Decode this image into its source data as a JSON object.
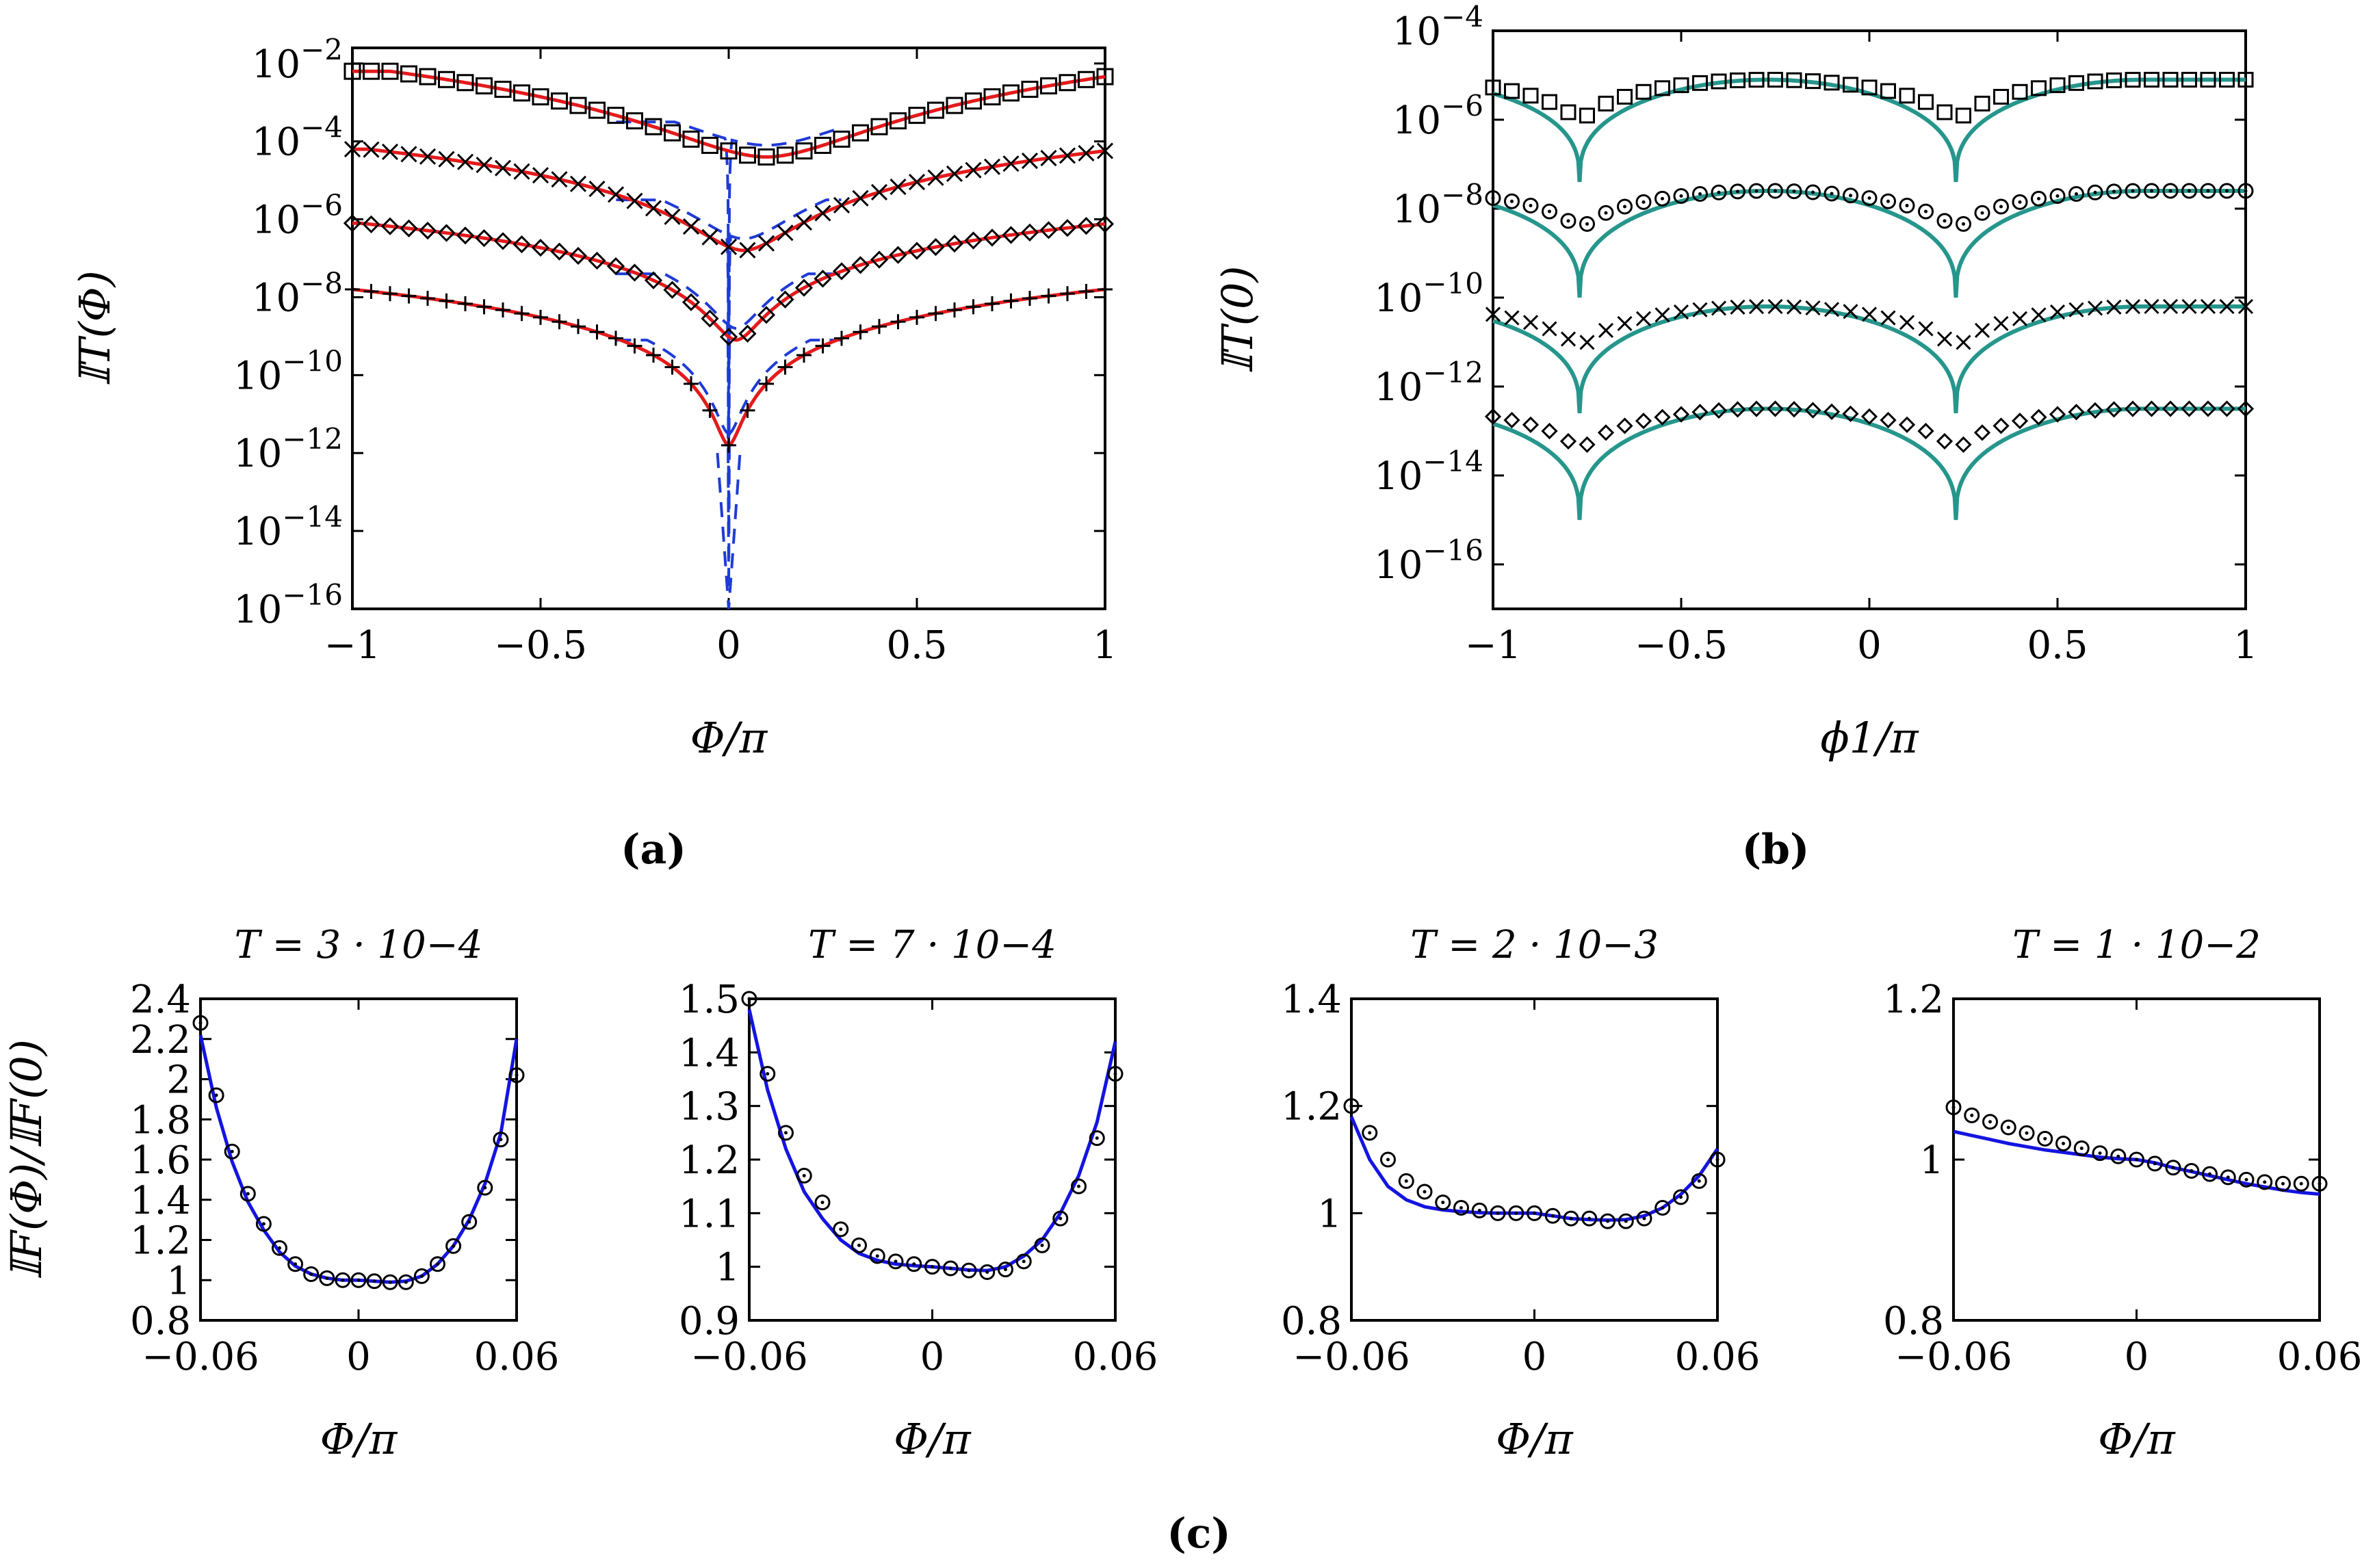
{
  "figure": {
    "panel_labels": [
      "(a)",
      "(b)",
      "(c)"
    ]
  },
  "chart_data": [
    {
      "id": "a",
      "type": "line",
      "xlabel": "Φ/π",
      "ylabel": "𝕀T(Φ)",
      "xlim": [
        -1,
        1
      ],
      "ylim_log10": [
        -16,
        -1.6
      ],
      "yscale": "log",
      "xticks": [
        -1,
        -0.5,
        0,
        0.5,
        1
      ],
      "xtick_labels": [
        "−1",
        "−0.5",
        "0",
        "0.5",
        "1"
      ],
      "yticks_exp": [
        -2,
        -4,
        -6,
        -8,
        -10,
        -12,
        -14,
        -16
      ],
      "ytick_labels": [
        "10−2",
        "10−4",
        "10−6",
        "10−8",
        "10−10",
        "10−12",
        "10−14",
        "10−16"
      ],
      "series": [
        {
          "name": "squares",
          "marker": "square",
          "top_log10": -2.2,
          "valley_log10": -4.4,
          "width": 0.25,
          "skew": 0.1,
          "n": 41
        },
        {
          "name": "crosses",
          "marker": "x",
          "top_log10": -4.2,
          "valley_log10": -6.8,
          "width": 0.12,
          "skew": 0.04,
          "n": 41
        },
        {
          "name": "diamonds",
          "marker": "diamond-x",
          "top_log10": -6.1,
          "valley_log10": -9.1,
          "width": 0.06,
          "skew": 0.02,
          "n": 41
        },
        {
          "name": "plus",
          "marker": "plus",
          "top_log10": -7.8,
          "valley_log10": -11.8,
          "width": 0.03,
          "skew": 0.0,
          "n": 41
        }
      ],
      "fit_color": "#e41a1c",
      "dashed_color": "#1f3bd6"
    },
    {
      "id": "b",
      "type": "line",
      "xlabel": "ϕ1/π",
      "ylabel": "𝕀T(0)",
      "xlim": [
        -1,
        1
      ],
      "ylim_log10": [
        -17,
        -4
      ],
      "yscale": "log",
      "xticks": [
        -1,
        -0.5,
        0,
        0.5,
        1
      ],
      "xtick_labels": [
        "−1",
        "−0.5",
        "0",
        "0.5",
        "1"
      ],
      "yticks_exp": [
        -4,
        -6,
        -8,
        -10,
        -12,
        -14,
        -16
      ],
      "ytick_labels": [
        "10−4",
        "10−6",
        "10−8",
        "10−10",
        "10−12",
        "10−14",
        "10−16"
      ],
      "dip_positions": [
        -0.77,
        0.23
      ],
      "series": [
        {
          "name": "squares",
          "marker": "square",
          "top_log10": -5.1,
          "dip_log10": -7.4,
          "marker_dip_log10": -6.4,
          "n": 41
        },
        {
          "name": "circles",
          "marker": "circle",
          "top_log10": -7.6,
          "dip_log10": -10.0,
          "marker_dip_log10": -8.8,
          "n": 41
        },
        {
          "name": "crosses",
          "marker": "x",
          "top_log10": -10.2,
          "dip_log10": -12.6,
          "marker_dip_log10": -11.5,
          "n": 41
        },
        {
          "name": "diamonds",
          "marker": "diamond",
          "top_log10": -12.5,
          "dip_log10": -15.0,
          "marker_dip_log10": -13.8,
          "n": 41
        }
      ],
      "fit_color": "#26968c"
    },
    {
      "id": "c1",
      "type": "line",
      "title": "T = 3 · 10−4",
      "xlabel": "Φ/π",
      "ylabel": "𝕀F(Φ)/𝕀F(0)",
      "xlim": [
        -0.06,
        0.06
      ],
      "ylim": [
        0.8,
        2.4
      ],
      "xticks": [
        -0.06,
        0,
        0.06
      ],
      "xtick_labels": [
        "−0.06",
        "0",
        "0.06"
      ],
      "yticks": [
        0.8,
        1,
        1.2,
        1.4,
        1.6,
        1.8,
        2,
        2.2,
        2.4
      ],
      "ytick_labels": [
        "0.8",
        "1",
        "1.2",
        "1.4",
        "1.6",
        "1.8",
        "2",
        "2.2",
        "2.4"
      ],
      "x": [
        -0.06,
        -0.054,
        -0.048,
        -0.042,
        -0.036,
        -0.03,
        -0.024,
        -0.018,
        -0.012,
        -0.006,
        0,
        0.006,
        0.012,
        0.018,
        0.024,
        0.03,
        0.036,
        0.042,
        0.048,
        0.054,
        0.06
      ],
      "points": [
        2.28,
        1.92,
        1.64,
        1.43,
        1.28,
        1.16,
        1.08,
        1.03,
        1.01,
        1.0,
        1.0,
        0.995,
        0.99,
        0.99,
        1.02,
        1.08,
        1.17,
        1.29,
        1.46,
        1.7,
        2.02
      ],
      "fit": [
        2.22,
        1.86,
        1.59,
        1.39,
        1.25,
        1.14,
        1.07,
        1.03,
        1.01,
        1.0,
        1.0,
        0.995,
        0.99,
        0.995,
        1.02,
        1.08,
        1.17,
        1.3,
        1.48,
        1.73,
        2.2
      ],
      "fit_color": "#1414e0"
    },
    {
      "id": "c2",
      "type": "line",
      "title": "T = 7 · 10−4",
      "xlabel": "Φ/π",
      "ylabel": "",
      "xlim": [
        -0.06,
        0.06
      ],
      "ylim": [
        0.9,
        1.5
      ],
      "xticks": [
        -0.06,
        0,
        0.06
      ],
      "xtick_labels": [
        "−0.06",
        "0",
        "0.06"
      ],
      "yticks": [
        0.9,
        1,
        1.1,
        1.2,
        1.3,
        1.4,
        1.5
      ],
      "ytick_labels": [
        "0.9",
        "1",
        "1.1",
        "1.2",
        "1.3",
        "1.4",
        "1.5"
      ],
      "x": [
        -0.06,
        -0.054,
        -0.048,
        -0.042,
        -0.036,
        -0.03,
        -0.024,
        -0.018,
        -0.012,
        -0.006,
        0,
        0.006,
        0.012,
        0.018,
        0.024,
        0.03,
        0.036,
        0.042,
        0.048,
        0.054,
        0.06
      ],
      "points": [
        1.5,
        1.36,
        1.25,
        1.17,
        1.12,
        1.07,
        1.04,
        1.02,
        1.01,
        1.005,
        1.0,
        0.997,
        0.993,
        0.99,
        0.995,
        1.01,
        1.04,
        1.09,
        1.15,
        1.24,
        1.36
      ],
      "fit": [
        1.48,
        1.33,
        1.22,
        1.14,
        1.09,
        1.05,
        1.025,
        1.012,
        1.005,
        1.002,
        1.0,
        0.997,
        0.994,
        0.993,
        1.0,
        1.02,
        1.05,
        1.1,
        1.17,
        1.27,
        1.42
      ],
      "fit_color": "#1414e0"
    },
    {
      "id": "c3",
      "type": "line",
      "title": "T = 2 · 10−3",
      "xlabel": "Φ/π",
      "ylabel": "",
      "xlim": [
        -0.06,
        0.06
      ],
      "ylim": [
        0.8,
        1.4
      ],
      "xticks": [
        -0.06,
        0,
        0.06
      ],
      "xtick_labels": [
        "−0.06",
        "0",
        "0.06"
      ],
      "yticks": [
        0.8,
        1,
        1.2,
        1.4
      ],
      "ytick_labels": [
        "0.8",
        "1",
        "1.2",
        "1.4"
      ],
      "x": [
        -0.06,
        -0.054,
        -0.048,
        -0.042,
        -0.036,
        -0.03,
        -0.024,
        -0.018,
        -0.012,
        -0.006,
        0,
        0.006,
        0.012,
        0.018,
        0.024,
        0.03,
        0.036,
        0.042,
        0.048,
        0.054,
        0.06
      ],
      "points": [
        1.2,
        1.15,
        1.1,
        1.06,
        1.04,
        1.02,
        1.01,
        1.005,
        1.0,
        1.0,
        1.0,
        0.995,
        0.99,
        0.99,
        0.985,
        0.985,
        0.99,
        1.01,
        1.03,
        1.06,
        1.1
      ],
      "fit": [
        1.18,
        1.1,
        1.05,
        1.025,
        1.012,
        1.006,
        1.003,
        1.001,
        1.0,
        1.0,
        1.0,
        0.995,
        0.99,
        0.988,
        0.987,
        0.988,
        0.995,
        1.01,
        1.035,
        1.07,
        1.12
      ],
      "fit_color": "#1414e0"
    },
    {
      "id": "c4",
      "type": "line",
      "title": "T = 1 · 10−2",
      "xlabel": "Φ/π",
      "ylabel": "",
      "xlim": [
        -0.06,
        0.06
      ],
      "ylim": [
        0.8,
        1.2
      ],
      "xticks": [
        -0.06,
        0,
        0.06
      ],
      "xtick_labels": [
        "−0.06",
        "0",
        "0.06"
      ],
      "yticks": [
        0.8,
        1,
        1.2
      ],
      "ytick_labels": [
        "0.8",
        "1",
        "1.2"
      ],
      "x": [
        -0.06,
        -0.054,
        -0.048,
        -0.042,
        -0.036,
        -0.03,
        -0.024,
        -0.018,
        -0.012,
        -0.006,
        0,
        0.006,
        0.012,
        0.018,
        0.024,
        0.03,
        0.036,
        0.042,
        0.048,
        0.054,
        0.06
      ],
      "points": [
        1.065,
        1.055,
        1.047,
        1.04,
        1.033,
        1.026,
        1.02,
        1.014,
        1.008,
        1.004,
        1.0,
        0.995,
        0.99,
        0.986,
        0.982,
        0.978,
        0.975,
        0.972,
        0.97,
        0.97,
        0.97
      ],
      "fit": [
        1.035,
        1.03,
        1.025,
        1.02,
        1.016,
        1.012,
        1.009,
        1.006,
        1.003,
        1.001,
        1.0,
        0.996,
        0.99,
        0.985,
        0.98,
        0.975,
        0.97,
        0.966,
        0.962,
        0.959,
        0.957
      ],
      "fit_color": "#1414e0"
    }
  ]
}
